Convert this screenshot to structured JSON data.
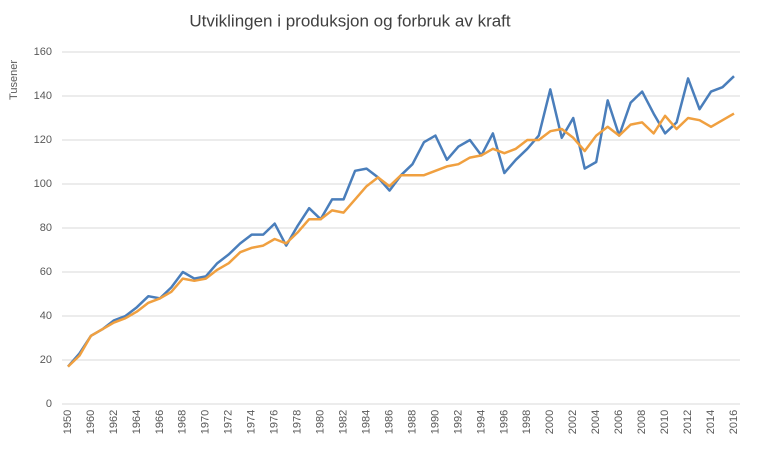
{
  "chart_data": {
    "type": "line",
    "title": "Utviklingen i produksjon og forbruk av kraft",
    "y_label": "Tusener",
    "categories": [
      "1950",
      null,
      "1960",
      null,
      "1962",
      null,
      "1964",
      null,
      "1966",
      null,
      "1968",
      null,
      "1970",
      null,
      "1972",
      null,
      "1974",
      null,
      "1976",
      null,
      "1978",
      null,
      "1980",
      null,
      "1982",
      null,
      "1984",
      null,
      "1986",
      null,
      "1988",
      null,
      "1990",
      null,
      "1992",
      null,
      "1994",
      null,
      "1996",
      null,
      "1998",
      null,
      "2000",
      null,
      "2002",
      null,
      "2004",
      null,
      "2006",
      null,
      "2008",
      null,
      "2010",
      null,
      "2012",
      null,
      "2014",
      null,
      "2016"
    ],
    "series": [
      {
        "color": "#4a7ebb",
        "values": [
          17,
          23,
          31,
          34,
          38,
          40,
          44,
          49,
          48,
          53,
          60,
          57,
          58,
          64,
          68,
          73,
          77,
          77,
          82,
          72,
          81,
          89,
          84,
          93,
          93,
          106,
          107,
          103,
          97,
          104,
          109,
          119,
          122,
          111,
          117,
          120,
          113,
          123,
          105,
          111,
          116,
          122,
          143,
          121,
          130,
          107,
          110,
          138,
          122,
          137,
          142,
          132,
          123,
          128,
          148,
          134,
          142,
          144,
          149
        ]
      },
      {
        "color": "#f0a040",
        "values": [
          17,
          22,
          31,
          34,
          37,
          39,
          42,
          46,
          48,
          51,
          57,
          56,
          57,
          61,
          64,
          69,
          71,
          72,
          75,
          73,
          78,
          84,
          84,
          88,
          87,
          93,
          99,
          103,
          99,
          104,
          104,
          104,
          106,
          108,
          109,
          112,
          113,
          116,
          114,
          116,
          120,
          120,
          124,
          125,
          121,
          115,
          122,
          126,
          122,
          127,
          128,
          123,
          131,
          125,
          130,
          129,
          126,
          129,
          132
        ]
      }
    ],
    "ylim": [
      0,
      160
    ],
    "yticks": [
      0,
      20,
      40,
      60,
      80,
      100,
      120,
      140,
      160
    ],
    "grid": true
  }
}
